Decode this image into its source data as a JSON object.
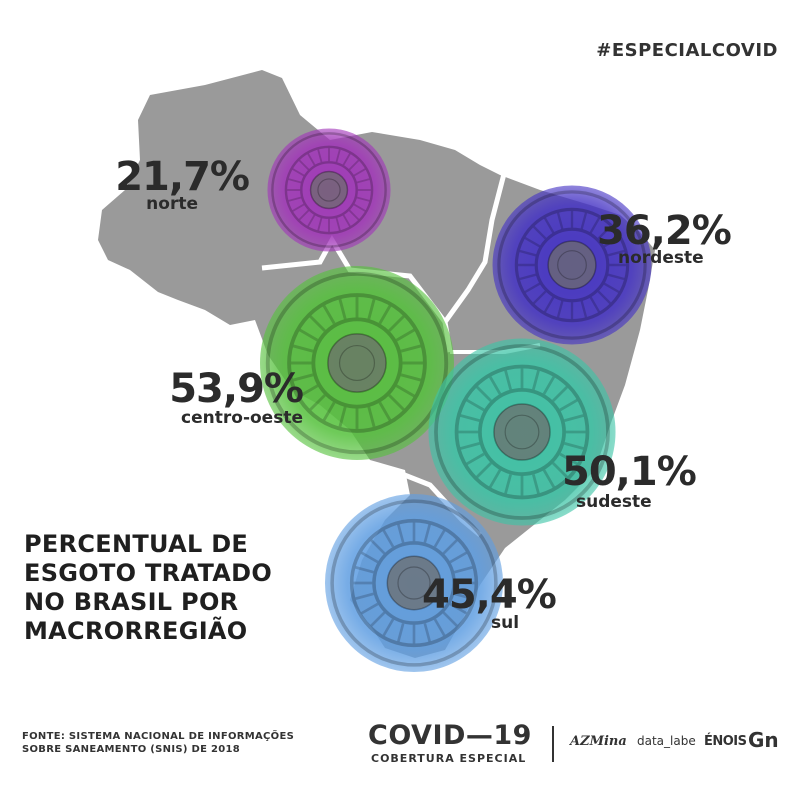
{
  "hashtag": "#ESPECIALCOVID",
  "title_lines": [
    "PERCENTUAL DE",
    "ESGOTO TRATADO",
    "NO BRASIL POR",
    "MACRORREGIÃO"
  ],
  "chart_data": {
    "type": "bubble-map",
    "title": "PERCENTUAL DE ESGOTO TRATADO NO BRASIL POR MACRORREGIÃO",
    "unit": "%",
    "categories": [
      "norte",
      "nordeste",
      "centro-oeste",
      "sudeste",
      "sul"
    ],
    "values": [
      21.7,
      36.2,
      53.9,
      50.1,
      45.4
    ],
    "value_labels": [
      "21,7%",
      "36,2%",
      "53,9%",
      "50,1%",
      "45,4%"
    ],
    "colors": [
      "#a135b9",
      "#4432c4",
      "#55c13c",
      "#3cc4a6",
      "#5f9ee2"
    ],
    "map_color": "#9b9b9b"
  },
  "source": [
    "FONTE: SISTEMA NACIONAL DE INFORMAÇÕES",
    "SOBRE SANEAMENTO (SNIS) DE 2018"
  ],
  "footer": {
    "covid": "COVID—19",
    "covid_sub": "COBERTURA ESPECIAL",
    "logos": [
      "AZMina",
      "data_labe",
      "ÉNOIS",
      "Gn"
    ]
  }
}
